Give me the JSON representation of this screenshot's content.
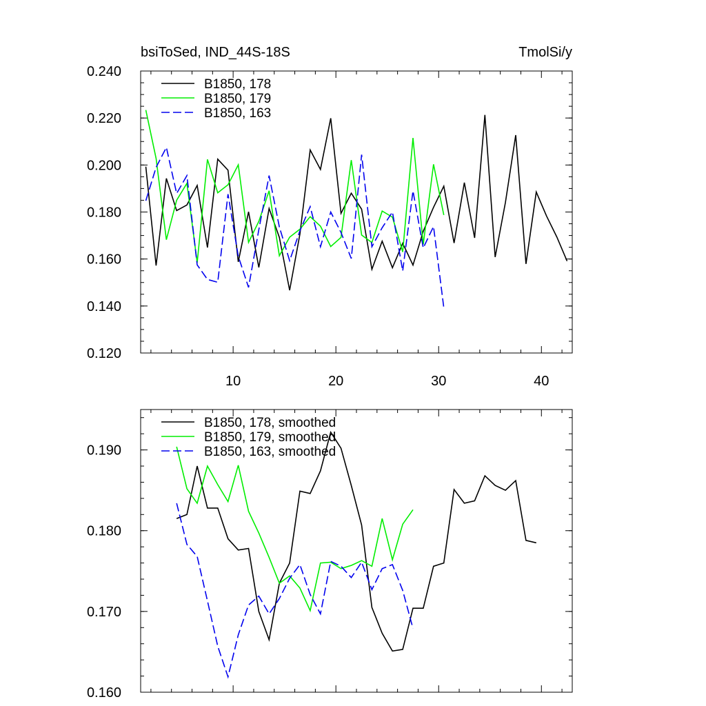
{
  "chart_data": [
    {
      "type": "line",
      "title_left": "bsiToSed, IND_44S-18S",
      "title_right": "TmolSi/y",
      "xlabel": "",
      "ylabel": "",
      "xlim": [
        1,
        43
      ],
      "ylim": [
        0.12,
        0.24
      ],
      "yticks": [
        "0.240",
        "0.220",
        "0.200",
        "0.180",
        "0.160",
        "0.140",
        "0.120"
      ],
      "ytick_values": [
        0.24,
        0.22,
        0.2,
        0.18,
        0.16,
        0.14,
        0.12
      ],
      "xticks": [
        "10",
        "20",
        "30",
        "40"
      ],
      "xtick_values": [
        10,
        20,
        30,
        40
      ],
      "legend_position": "top-left",
      "series": [
        {
          "name": "B1850, 178",
          "color": "#000000",
          "dash": "solid",
          "x": [
            1.5,
            2.5,
            3.5,
            4.5,
            5.5,
            6.5,
            7.5,
            8.5,
            9.5,
            10.5,
            11.5,
            12.5,
            13.5,
            14.5,
            15.5,
            16.5,
            17.5,
            18.5,
            19.5,
            20.5,
            21.5,
            22.5,
            23.5,
            24.5,
            25.5,
            26.5,
            27.5,
            28.5,
            29.5,
            30.5,
            31.5,
            32.5,
            33.5,
            34.5,
            35.5,
            36.5,
            37.5,
            38.5,
            39.5,
            40.5,
            41.5,
            42.5
          ],
          "values": [
            0.1993,
            0.1572,
            0.1943,
            0.1806,
            0.183,
            0.1913,
            0.1649,
            0.2025,
            0.1978,
            0.1588,
            0.1801,
            0.1564,
            0.1815,
            0.1692,
            0.1467,
            0.1706,
            0.2064,
            0.1981,
            0.2199,
            0.1794,
            0.188,
            0.1812,
            0.1556,
            0.1676,
            0.1563,
            0.1667,
            0.1574,
            0.1718,
            0.182,
            0.191,
            0.1668,
            0.1925,
            0.169,
            0.2213,
            0.1608,
            0.1841,
            0.2127,
            0.1579,
            0.1885,
            0.1783,
            0.1694,
            0.1591
          ]
        },
        {
          "name": "B1850, 179",
          "color": "#00ee00",
          "dash": "solid",
          "x": [
            1.5,
            2.5,
            3.5,
            4.5,
            5.5,
            6.5,
            7.5,
            8.5,
            9.5,
            10.5,
            11.5,
            12.5,
            13.5,
            14.5,
            15.5,
            16.5,
            17.5,
            18.5,
            19.5,
            20.5,
            21.5,
            22.5,
            23.5,
            24.5,
            25.5,
            26.5,
            27.5,
            28.5,
            29.5,
            30.5
          ],
          "values": [
            0.2234,
            0.2028,
            0.1682,
            0.185,
            0.1922,
            0.1584,
            0.2024,
            0.1882,
            0.1916,
            0.2001,
            0.1671,
            0.176,
            0.189,
            0.1614,
            0.1693,
            0.1727,
            0.178,
            0.174,
            0.1653,
            0.1692,
            0.2021,
            0.1702,
            0.167,
            0.1804,
            0.1778,
            0.163,
            0.2115,
            0.1662,
            0.2003,
            0.1787
          ]
        },
        {
          "name": "B1850, 163",
          "color": "#0000ee",
          "dash": "dashed",
          "x": [
            1.5,
            2.5,
            3.5,
            4.5,
            5.5,
            6.5,
            7.5,
            8.5,
            9.5,
            10.5,
            11.5,
            12.5,
            13.5,
            14.5,
            15.5,
            16.5,
            17.5,
            18.5,
            19.5,
            20.5,
            21.5,
            22.5,
            23.5,
            24.5,
            25.5,
            26.5,
            27.5,
            28.5,
            29.5,
            30.5
          ],
          "values": [
            0.1848,
            0.199,
            0.2075,
            0.1879,
            0.1955,
            0.1575,
            0.1513,
            0.1501,
            0.1876,
            0.1612,
            0.1479,
            0.1725,
            0.1955,
            0.1736,
            0.1593,
            0.172,
            0.1823,
            0.1652,
            0.18,
            0.1713,
            0.1602,
            0.2044,
            0.1652,
            0.1733,
            0.18,
            0.1549,
            0.189,
            0.1647,
            0.1738,
            0.1393
          ]
        }
      ]
    },
    {
      "type": "line",
      "title_left": "",
      "title_right": "",
      "xlabel": "",
      "ylabel": "",
      "xlim": [
        1,
        43
      ],
      "ylim": [
        0.16,
        0.195
      ],
      "yticks": [
        "0.190",
        "0.180",
        "0.170",
        "0.160"
      ],
      "ytick_values": [
        0.19,
        0.18,
        0.17,
        0.16
      ],
      "xtick_values": [
        10,
        20,
        30,
        40
      ],
      "legend_position": "top-left",
      "series": [
        {
          "name": "B1850, 178, smoothed",
          "color": "#000000",
          "dash": "solid",
          "x": [
            4.5,
            5.5,
            6.5,
            7.5,
            8.5,
            9.5,
            10.5,
            11.5,
            12.5,
            13.5,
            14.5,
            15.5,
            16.5,
            17.5,
            18.5,
            19.5,
            20.5,
            21.5,
            22.5,
            23.5,
            24.5,
            25.5,
            26.5,
            27.5,
            28.5,
            29.5,
            30.5,
            31.5,
            32.5,
            33.5,
            34.5,
            35.5,
            36.5,
            37.5,
            38.5,
            39.5
          ],
          "values": [
            0.1815,
            0.182,
            0.188,
            0.1828,
            0.1828,
            0.179,
            0.1776,
            0.1778,
            0.17,
            0.1665,
            0.1735,
            0.176,
            0.1849,
            0.1846,
            0.1874,
            0.1922,
            0.1902,
            0.1856,
            0.1807,
            0.1705,
            0.1673,
            0.1651,
            0.1653,
            0.1704,
            0.1704,
            0.1756,
            0.176,
            0.1851,
            0.1834,
            0.1837,
            0.1868,
            0.1856,
            0.185,
            0.1862,
            0.1788,
            0.1785
          ]
        },
        {
          "name": "B1850, 179, smoothed",
          "color": "#00ee00",
          "dash": "solid",
          "x": [
            4.5,
            5.5,
            6.5,
            7.5,
            8.5,
            9.5,
            10.5,
            11.5,
            12.5,
            13.5,
            14.5,
            15.5,
            16.5,
            17.5,
            18.5,
            19.5,
            20.5,
            21.5,
            22.5,
            23.5,
            24.5,
            25.5,
            26.5,
            27.5
          ],
          "values": [
            0.1904,
            0.1852,
            0.1834,
            0.188,
            0.1857,
            0.1836,
            0.1881,
            0.1824,
            0.1797,
            0.1767,
            0.1735,
            0.1744,
            0.1729,
            0.1701,
            0.176,
            0.1761,
            0.1753,
            0.1757,
            0.1763,
            0.1756,
            0.1815,
            0.1764,
            0.1808,
            0.1826
          ]
        },
        {
          "name": "B1850, 163, smoothed",
          "color": "#0000ee",
          "dash": "dashed",
          "x": [
            4.5,
            5.5,
            6.5,
            7.5,
            8.5,
            9.5,
            10.5,
            11.5,
            12.5,
            13.5,
            14.5,
            15.5,
            16.5,
            17.5,
            18.5,
            19.5,
            20.5,
            21.5,
            22.5,
            23.5,
            24.5,
            25.5,
            26.5,
            27.5
          ],
          "values": [
            0.1834,
            0.1783,
            0.1768,
            0.1713,
            0.1657,
            0.1619,
            0.1671,
            0.1708,
            0.1719,
            0.1697,
            0.1716,
            0.1741,
            0.1758,
            0.1721,
            0.1697,
            0.1762,
            0.1756,
            0.1742,
            0.1761,
            0.1727,
            0.1753,
            0.1758,
            0.1726,
            0.1679
          ]
        }
      ]
    }
  ]
}
